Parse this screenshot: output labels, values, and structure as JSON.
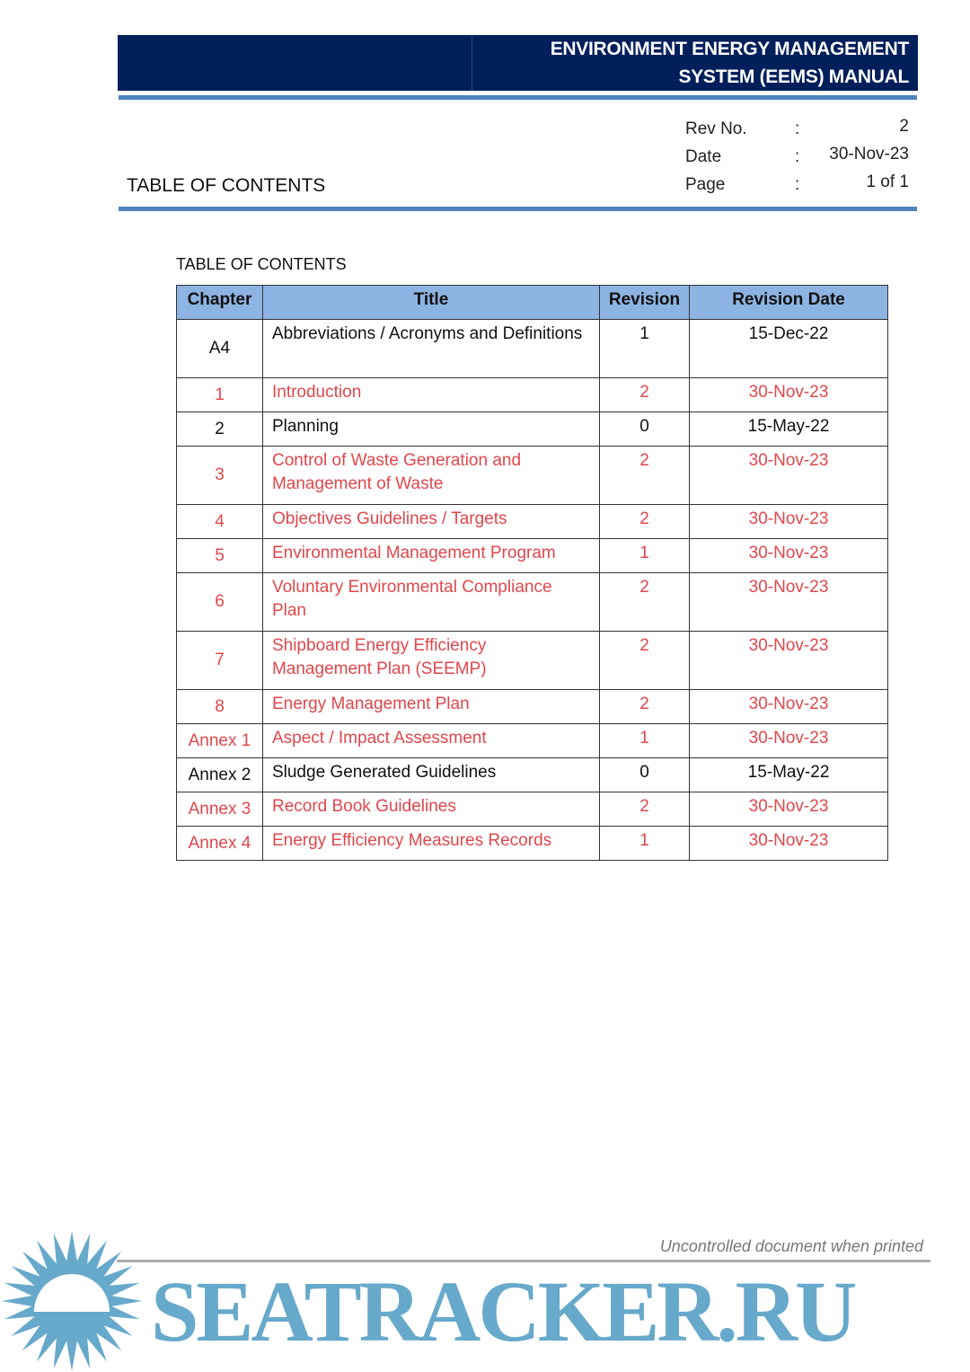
{
  "header": {
    "title_line1": "ENVIRONMENT ENERGY MANAGEMENT",
    "title_line2": "SYSTEM (EEMS) MANUAL",
    "doc_title": "TABLE OF CONTENTS",
    "meta": [
      {
        "label": "Rev No.",
        "sep": ":",
        "value": "2"
      },
      {
        "label": "Date",
        "sep": ":",
        "value": "30-Nov-23"
      },
      {
        "label": "Page",
        "sep": ":",
        "value": "1 of 1"
      }
    ]
  },
  "toc": {
    "label": "TABLE OF CONTENTS",
    "columns": [
      "Chapter",
      "Title",
      "Revision",
      "Revision Date"
    ],
    "rows": [
      {
        "chapter": "A4",
        "title": "Abbreviations / Acronyms and Definitions",
        "revision": "1",
        "date": "15-Dec-22",
        "highlight": false
      },
      {
        "chapter": "1",
        "title": "Introduction",
        "revision": "2",
        "date": "30-Nov-23",
        "highlight": true
      },
      {
        "chapter": "2",
        "title": "Planning",
        "revision": "0",
        "date": "15-May-22",
        "highlight": false
      },
      {
        "chapter": "3",
        "title": "Control of Waste Generation and Management of Waste",
        "revision": "2",
        "date": "30-Nov-23",
        "highlight": true
      },
      {
        "chapter": "4",
        "title": "Objectives Guidelines / Targets",
        "revision": "2",
        "date": "30-Nov-23",
        "highlight": true
      },
      {
        "chapter": "5",
        "title": "Environmental Management Program",
        "revision": "1",
        "date": "30-Nov-23",
        "highlight": true
      },
      {
        "chapter": "6",
        "title": "Voluntary Environmental Compliance Plan",
        "revision": "2",
        "date": "30-Nov-23",
        "highlight": true
      },
      {
        "chapter": "7",
        "title": "Shipboard Energy Efficiency Management Plan (SEEMP)",
        "revision": "2",
        "date": "30-Nov-23",
        "highlight": true
      },
      {
        "chapter": "8",
        "title": "Energy Management Plan",
        "revision": "2",
        "date": "30-Nov-23",
        "highlight": true
      },
      {
        "chapter": "Annex 1",
        "title": "Aspect / Impact Assessment",
        "revision": "1",
        "date": "30-Nov-23",
        "highlight": true
      },
      {
        "chapter": "Annex 2",
        "title": "Sludge Generated Guidelines",
        "revision": "0",
        "date": "15-May-22",
        "highlight": false
      },
      {
        "chapter": "Annex 3",
        "title": "Record Book Guidelines",
        "revision": "2",
        "date": "30-Nov-23",
        "highlight": true
      },
      {
        "chapter": "Annex 4",
        "title": "Energy Efficiency Measures Records",
        "revision": "1",
        "date": "30-Nov-23",
        "highlight": true
      }
    ]
  },
  "footer": {
    "note": "Uncontrolled document when printed",
    "watermark": "SEATRACKER.RU"
  },
  "colors": {
    "banner": "#001f5b",
    "rule": "#4f81bd",
    "header_fill": "#8db3e2",
    "revised_text": "#e0474c",
    "watermark": "#67a9cb"
  }
}
